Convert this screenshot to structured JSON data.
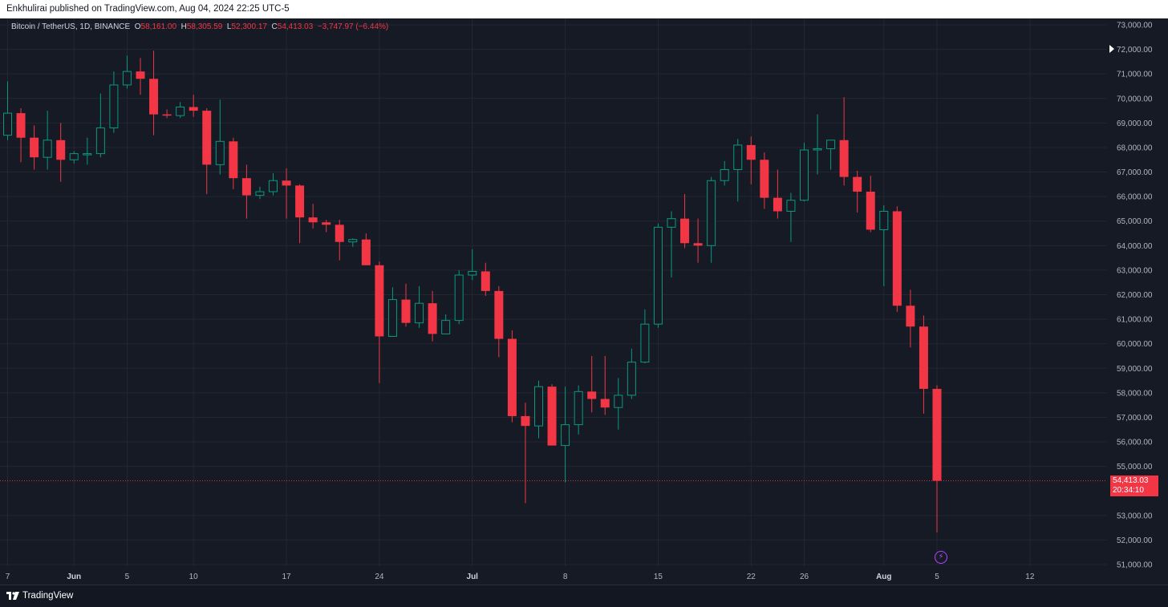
{
  "header": {
    "published_text": "Enkhulirai published on TradingView.com, Aug 04, 2024 22:25 UTC-5"
  },
  "legend": {
    "symbol": "Bitcoin / TetherUS, 1D, BINANCE",
    "o_label": "O",
    "o_value": "58,161.00",
    "h_label": "H",
    "h_value": "58,305.59",
    "l_label": "L",
    "l_value": "52,300.17",
    "c_label": "C",
    "c_value": "54,413.03",
    "change": "−3,747.97 (−6.44%)"
  },
  "price_tag": {
    "price": "54,413.03",
    "countdown": "20:34:10"
  },
  "footer": {
    "brand": "TradingView"
  },
  "colors": {
    "up": "#089981",
    "down": "#f23645",
    "background": "#161a25",
    "grid": "#232733",
    "axis_text": "#b2b5be",
    "event_icon": "#b047ff"
  },
  "icons": {
    "event": "lightning-icon",
    "logo": "tradingview-logo-icon",
    "last_price_arrow": "triangle-right-icon"
  },
  "chart_data": {
    "type": "candlestick",
    "title": "Bitcoin / TetherUS, 1D, BINANCE",
    "y_range": [
      51000,
      73000
    ],
    "y_ticks": [
      "73,000.00",
      "72,000.00",
      "71,000.00",
      "70,000.00",
      "69,000.00",
      "68,000.00",
      "67,000.00",
      "66,000.00",
      "65,000.00",
      "64,000.00",
      "63,000.00",
      "62,000.00",
      "61,000.00",
      "60,000.00",
      "59,000.00",
      "58,000.00",
      "57,000.00",
      "56,000.00",
      "55,000.00",
      "53,000.00",
      "52,000.00",
      "51,000.00"
    ],
    "x_ticks": [
      "7",
      "Jun",
      "5",
      "10",
      "17",
      "24",
      "Jul",
      "8",
      "15",
      "22",
      "26",
      "Aug",
      "5",
      "12"
    ],
    "last_price": 54413.03,
    "candles": [
      {
        "date": "2024-05-27",
        "o": 68500,
        "h": 70700,
        "l": 68300,
        "c": 69400
      },
      {
        "date": "2024-05-28",
        "o": 69400,
        "h": 69600,
        "l": 67400,
        "c": 68400
      },
      {
        "date": "2024-05-29",
        "o": 68400,
        "h": 68900,
        "l": 67100,
        "c": 67600
      },
      {
        "date": "2024-05-30",
        "o": 67600,
        "h": 69500,
        "l": 67100,
        "c": 68300
      },
      {
        "date": "2024-05-31",
        "o": 68300,
        "h": 69000,
        "l": 66600,
        "c": 67500
      },
      {
        "date": "2024-06-01",
        "o": 67500,
        "h": 67850,
        "l": 67350,
        "c": 67750
      },
      {
        "date": "2024-06-02",
        "o": 67750,
        "h": 68400,
        "l": 67300,
        "c": 67750
      },
      {
        "date": "2024-06-03",
        "o": 67750,
        "h": 70200,
        "l": 67600,
        "c": 68800
      },
      {
        "date": "2024-06-04",
        "o": 68800,
        "h": 71100,
        "l": 68600,
        "c": 70550
      },
      {
        "date": "2024-06-05",
        "o": 70550,
        "h": 71750,
        "l": 70400,
        "c": 71100
      },
      {
        "date": "2024-06-06",
        "o": 71100,
        "h": 71650,
        "l": 70150,
        "c": 70800
      },
      {
        "date": "2024-06-07",
        "o": 70800,
        "h": 71950,
        "l": 68500,
        "c": 69350
      },
      {
        "date": "2024-06-08",
        "o": 69350,
        "h": 69550,
        "l": 69200,
        "c": 69300
      },
      {
        "date": "2024-06-09",
        "o": 69300,
        "h": 69850,
        "l": 69200,
        "c": 69650
      },
      {
        "date": "2024-06-10",
        "o": 69650,
        "h": 70150,
        "l": 69250,
        "c": 69500
      },
      {
        "date": "2024-06-11",
        "o": 69500,
        "h": 69600,
        "l": 66100,
        "c": 67300
      },
      {
        "date": "2024-06-12",
        "o": 67300,
        "h": 69950,
        "l": 66900,
        "c": 68250
      },
      {
        "date": "2024-06-13",
        "o": 68250,
        "h": 68400,
        "l": 66300,
        "c": 66750
      },
      {
        "date": "2024-06-14",
        "o": 66750,
        "h": 67300,
        "l": 65100,
        "c": 66050
      },
      {
        "date": "2024-06-15",
        "o": 66050,
        "h": 66400,
        "l": 65900,
        "c": 66200
      },
      {
        "date": "2024-06-16",
        "o": 66200,
        "h": 66950,
        "l": 66050,
        "c": 66650
      },
      {
        "date": "2024-06-17",
        "o": 66650,
        "h": 67150,
        "l": 65100,
        "c": 66450
      },
      {
        "date": "2024-06-18",
        "o": 66450,
        "h": 66500,
        "l": 64100,
        "c": 65150
      },
      {
        "date": "2024-06-19",
        "o": 65150,
        "h": 65700,
        "l": 64700,
        "c": 64950
      },
      {
        "date": "2024-06-20",
        "o": 64950,
        "h": 65050,
        "l": 64550,
        "c": 64850
      },
      {
        "date": "2024-06-21",
        "o": 64850,
        "h": 65050,
        "l": 63400,
        "c": 64150
      },
      {
        "date": "2024-06-22",
        "o": 64150,
        "h": 64300,
        "l": 63950,
        "c": 64250
      },
      {
        "date": "2024-06-23",
        "o": 64250,
        "h": 64500,
        "l": 63200,
        "c": 63200
      },
      {
        "date": "2024-06-24",
        "o": 63200,
        "h": 63350,
        "l": 58400,
        "c": 60300
      },
      {
        "date": "2024-06-25",
        "o": 60300,
        "h": 62300,
        "l": 60300,
        "c": 61800
      },
      {
        "date": "2024-06-26",
        "o": 61800,
        "h": 62450,
        "l": 60700,
        "c": 60850
      },
      {
        "date": "2024-06-27",
        "o": 60850,
        "h": 62350,
        "l": 60650,
        "c": 61650
      },
      {
        "date": "2024-06-28",
        "o": 61650,
        "h": 62150,
        "l": 60100,
        "c": 60400
      },
      {
        "date": "2024-06-29",
        "o": 60400,
        "h": 61200,
        "l": 60400,
        "c": 60950
      },
      {
        "date": "2024-06-30",
        "o": 60950,
        "h": 63000,
        "l": 60800,
        "c": 62800
      },
      {
        "date": "2024-07-01",
        "o": 62800,
        "h": 63850,
        "l": 62600,
        "c": 62950
      },
      {
        "date": "2024-07-02",
        "o": 62950,
        "h": 63300,
        "l": 61950,
        "c": 62150
      },
      {
        "date": "2024-07-03",
        "o": 62150,
        "h": 62350,
        "l": 59450,
        "c": 60200
      },
      {
        "date": "2024-07-04",
        "o": 60200,
        "h": 60550,
        "l": 56800,
        "c": 57050
      },
      {
        "date": "2024-07-05",
        "o": 57050,
        "h": 57600,
        "l": 53500,
        "c": 56650
      },
      {
        "date": "2024-07-06",
        "o": 56650,
        "h": 58500,
        "l": 56150,
        "c": 58250
      },
      {
        "date": "2024-07-07",
        "o": 58250,
        "h": 58350,
        "l": 55850,
        "c": 55850
      },
      {
        "date": "2024-07-08",
        "o": 55850,
        "h": 58250,
        "l": 54350,
        "c": 56700
      },
      {
        "date": "2024-07-09",
        "o": 56700,
        "h": 58300,
        "l": 56300,
        "c": 58050
      },
      {
        "date": "2024-07-10",
        "o": 58050,
        "h": 59500,
        "l": 57200,
        "c": 57750
      },
      {
        "date": "2024-07-11",
        "o": 57750,
        "h": 59500,
        "l": 57100,
        "c": 57400
      },
      {
        "date": "2024-07-12",
        "o": 57400,
        "h": 58600,
        "l": 56500,
        "c": 57900
      },
      {
        "date": "2024-07-13",
        "o": 57900,
        "h": 59800,
        "l": 57750,
        "c": 59250
      },
      {
        "date": "2024-07-14",
        "o": 59250,
        "h": 61400,
        "l": 59200,
        "c": 60800
      },
      {
        "date": "2024-07-15",
        "o": 60800,
        "h": 64900,
        "l": 60650,
        "c": 64750
      },
      {
        "date": "2024-07-16",
        "o": 64750,
        "h": 65400,
        "l": 62700,
        "c": 65100
      },
      {
        "date": "2024-07-17",
        "o": 65100,
        "h": 66100,
        "l": 63900,
        "c": 64100
      },
      {
        "date": "2024-07-18",
        "o": 64100,
        "h": 65100,
        "l": 63300,
        "c": 64000
      },
      {
        "date": "2024-07-19",
        "o": 64000,
        "h": 66800,
        "l": 63300,
        "c": 66650
      },
      {
        "date": "2024-07-20",
        "o": 66650,
        "h": 67450,
        "l": 66450,
        "c": 67100
      },
      {
        "date": "2024-07-21",
        "o": 67100,
        "h": 68350,
        "l": 65800,
        "c": 68100
      },
      {
        "date": "2024-07-22",
        "o": 68100,
        "h": 68450,
        "l": 66500,
        "c": 67500
      },
      {
        "date": "2024-07-23",
        "o": 67500,
        "h": 67800,
        "l": 65500,
        "c": 65950
      },
      {
        "date": "2024-07-24",
        "o": 65950,
        "h": 67100,
        "l": 65100,
        "c": 65400
      },
      {
        "date": "2024-07-25",
        "o": 65400,
        "h": 66150,
        "l": 64150,
        "c": 65850
      },
      {
        "date": "2024-07-26",
        "o": 65850,
        "h": 68200,
        "l": 65800,
        "c": 67900
      },
      {
        "date": "2024-07-27",
        "o": 67900,
        "h": 69350,
        "l": 66900,
        "c": 67950
      },
      {
        "date": "2024-07-28",
        "o": 67950,
        "h": 68300,
        "l": 67100,
        "c": 68300
      },
      {
        "date": "2024-07-29",
        "o": 68300,
        "h": 70050,
        "l": 66450,
        "c": 66800
      },
      {
        "date": "2024-07-30",
        "o": 66800,
        "h": 67050,
        "l": 65350,
        "c": 66200
      },
      {
        "date": "2024-07-31",
        "o": 66200,
        "h": 66850,
        "l": 64550,
        "c": 64650
      },
      {
        "date": "2024-08-01",
        "o": 64650,
        "h": 65650,
        "l": 62350,
        "c": 65400
      },
      {
        "date": "2024-08-02",
        "o": 65400,
        "h": 65600,
        "l": 61300,
        "c": 61550
      },
      {
        "date": "2024-08-03",
        "o": 61550,
        "h": 62200,
        "l": 59850,
        "c": 60700
      },
      {
        "date": "2024-08-04",
        "o": 60700,
        "h": 61150,
        "l": 57150,
        "c": 58161
      },
      {
        "date": "2024-08-05",
        "o": 58161,
        "h": 58305.59,
        "l": 52300.17,
        "c": 54413.03
      }
    ]
  }
}
